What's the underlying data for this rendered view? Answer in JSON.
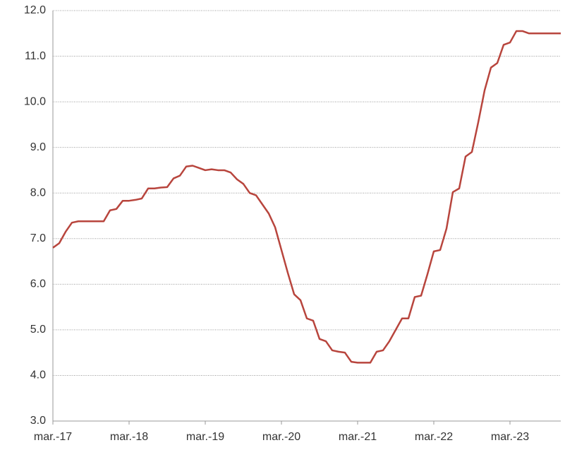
{
  "chart_data": {
    "type": "line",
    "categories": [
      "mar.-17",
      null,
      null,
      null,
      null,
      null,
      null,
      null,
      null,
      null,
      null,
      null,
      "mar.-18",
      null,
      null,
      null,
      null,
      null,
      null,
      null,
      null,
      null,
      null,
      null,
      "mar.-19",
      null,
      null,
      null,
      null,
      null,
      null,
      null,
      null,
      null,
      null,
      null,
      "mar.-20",
      null,
      null,
      null,
      null,
      null,
      null,
      null,
      null,
      null,
      null,
      null,
      "mar.-21",
      null,
      null,
      null,
      null,
      null,
      null,
      null,
      null,
      null,
      null,
      null,
      "mar.-22",
      null,
      null,
      null,
      null,
      null,
      null,
      null,
      null,
      null,
      null,
      null,
      "mar.-23",
      null,
      null,
      null,
      null,
      null,
      null,
      null,
      null
    ],
    "series": [
      {
        "color": "#b8453d",
        "values": [
          6.8,
          6.9,
          7.15,
          7.35,
          7.38,
          7.38,
          7.38,
          7.38,
          7.38,
          7.62,
          7.65,
          7.83,
          7.83,
          7.85,
          7.88,
          8.1,
          8.1,
          8.12,
          8.13,
          8.32,
          8.38,
          8.58,
          8.6,
          8.55,
          8.5,
          8.52,
          8.5,
          8.5,
          8.45,
          8.3,
          8.2,
          8.0,
          7.95,
          7.75,
          7.55,
          7.25,
          6.75,
          6.25,
          5.78,
          5.65,
          5.25,
          5.2,
          4.8,
          4.75,
          4.55,
          4.52,
          4.5,
          4.3,
          4.28,
          4.28,
          4.28,
          4.52,
          4.55,
          4.75,
          5.0,
          5.25,
          5.25,
          5.72,
          5.75,
          6.22,
          6.72,
          6.75,
          7.22,
          8.02,
          8.1,
          8.8,
          8.9,
          9.55,
          10.25,
          10.75,
          10.85,
          11.25,
          11.3,
          11.55,
          11.55,
          11.5,
          11.5,
          11.5,
          11.5,
          11.5,
          11.5
        ]
      }
    ],
    "ylim": [
      3,
      12
    ],
    "yticks": [
      {
        "value": 3,
        "label": "3.0"
      },
      {
        "value": 4,
        "label": "4.0"
      },
      {
        "value": 5,
        "label": "5.0"
      },
      {
        "value": 6,
        "label": "6.0"
      },
      {
        "value": 7,
        "label": "7.0"
      },
      {
        "value": 8,
        "label": "8.0"
      },
      {
        "value": 9,
        "label": "9.0"
      },
      {
        "value": 10,
        "label": "10.0"
      },
      {
        "value": 11,
        "label": "11.0"
      },
      {
        "value": 12,
        "label": "12.0"
      }
    ],
    "grid": true
  }
}
